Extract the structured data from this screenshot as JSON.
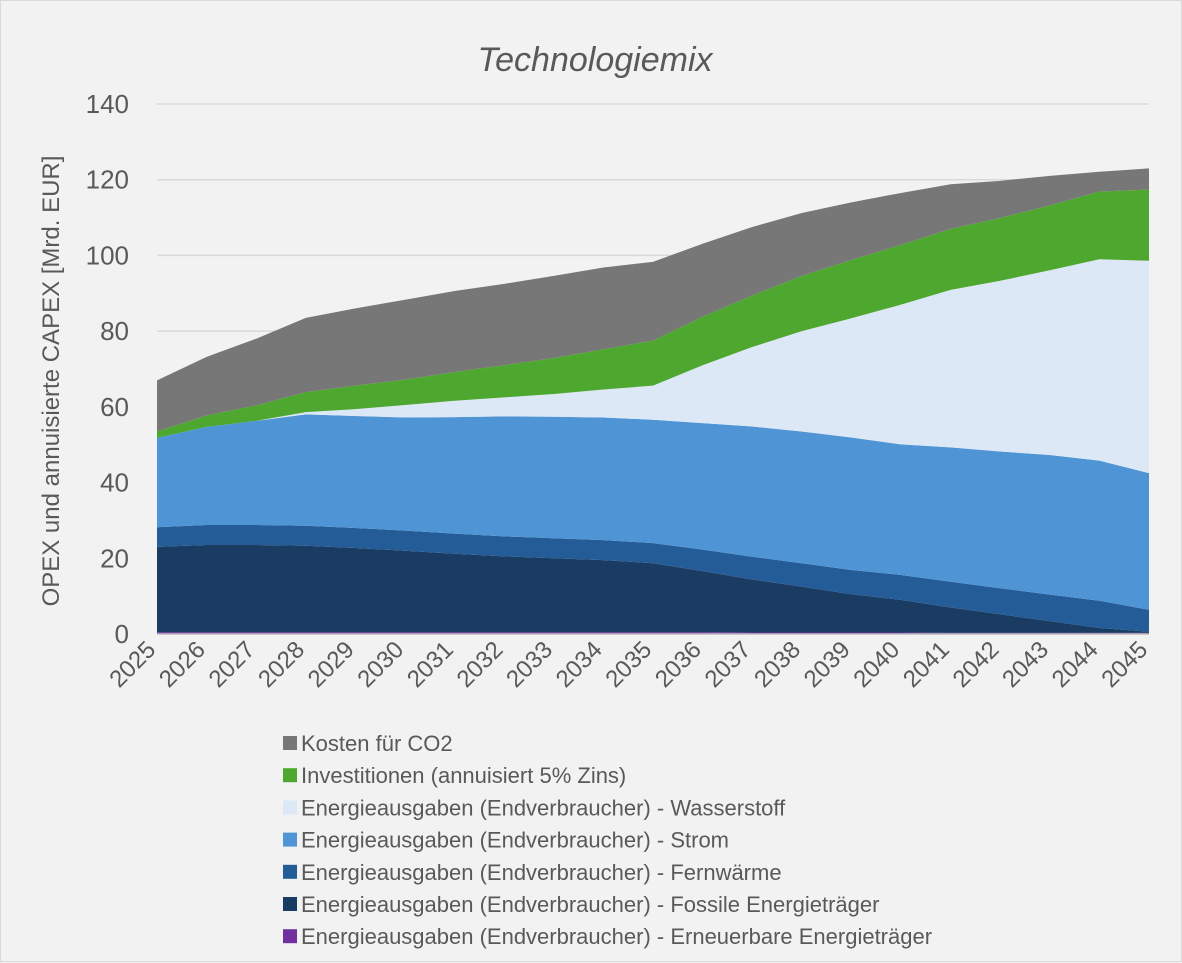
{
  "chart_data": {
    "type": "area",
    "stacked": true,
    "title": "Technologiemix",
    "xlabel": "",
    "ylabel": "OPEX und annuisierte CAPEX [Mrd. EUR]",
    "ylim": [
      0,
      140
    ],
    "yticks": [
      "0",
      "20",
      "40",
      "60",
      "80",
      "100",
      "120",
      "140"
    ],
    "grid": true,
    "legend_position": "bottom",
    "x": [
      "2025",
      "2026",
      "2027",
      "2028",
      "2029",
      "2030",
      "2031",
      "2032",
      "2033",
      "2034",
      "2035",
      "2036",
      "2037",
      "2038",
      "2039",
      "2040",
      "2041",
      "2042",
      "2043",
      "2044",
      "2045"
    ],
    "series": [
      {
        "name": "Energieausgaben (Endverbraucher) - Erneuerbare Energieträger",
        "color": "#7030a0",
        "values": [
          0.5,
          0.5,
          0.5,
          0.5,
          0.5,
          0.5,
          0.5,
          0.5,
          0.5,
          0.5,
          0.5,
          0.5,
          0.4,
          0.4,
          0.4,
          0.4,
          0.3,
          0.3,
          0.3,
          0.3,
          0.3
        ]
      },
      {
        "name": "Energieausgaben (Endverbraucher) - Fossile Energieträger",
        "color": "#1a3c63",
        "values": [
          22.5,
          23.0,
          23.0,
          22.8,
          22.2,
          21.5,
          20.7,
          20.0,
          19.5,
          19.0,
          18.2,
          16.1,
          14.0,
          12.1,
          10.1,
          8.6,
          6.7,
          4.9,
          3.1,
          1.3,
          0.3
        ]
      },
      {
        "name": "Energieausgaben (Endverbraucher) - Fernwärme",
        "color": "#245c97",
        "values": [
          5.2,
          5.3,
          5.3,
          5.3,
          5.3,
          5.3,
          5.3,
          5.3,
          5.3,
          5.3,
          5.3,
          5.7,
          6.0,
          6.2,
          6.4,
          6.6,
          6.8,
          6.9,
          7.0,
          7.2,
          5.8
        ]
      },
      {
        "name": "Energieausgaben (Endverbraucher) - Strom",
        "color": "#4f95d6",
        "values": [
          23.6,
          25.9,
          27.5,
          29.4,
          29.6,
          29.9,
          30.8,
          31.7,
          32.1,
          32.4,
          32.6,
          33.4,
          34.4,
          34.8,
          35.0,
          34.5,
          35.5,
          36.1,
          36.9,
          37.0,
          36.1
        ]
      },
      {
        "name": "Energieausgaben (Endverbraucher) - Wasserstoff",
        "color": "#dce8f6",
        "values": [
          0.0,
          0.0,
          0.0,
          0.6,
          1.8,
          3.3,
          4.3,
          5.0,
          6.0,
          7.4,
          9.0,
          15.3,
          21.0,
          26.5,
          31.5,
          36.9,
          41.6,
          45.1,
          48.8,
          53.2,
          56.1
        ]
      },
      {
        "name": "Investitionen (annuisiert 5% Zins)",
        "color": "#4ea72e",
        "values": [
          1.7,
          3.0,
          4.1,
          5.3,
          6.2,
          6.7,
          7.6,
          8.5,
          9.5,
          10.6,
          11.9,
          12.8,
          13.6,
          14.6,
          15.4,
          15.8,
          16.1,
          16.6,
          17.1,
          17.9,
          18.8
        ]
      },
      {
        "name": "Kosten für CO2",
        "color": "#777777",
        "values": [
          13.5,
          15.5,
          17.6,
          19.6,
          20.4,
          21.1,
          21.4,
          21.5,
          21.7,
          21.6,
          20.8,
          19.3,
          18.1,
          16.6,
          15.2,
          13.7,
          11.8,
          9.8,
          7.8,
          5.2,
          5.6
        ]
      }
    ]
  }
}
